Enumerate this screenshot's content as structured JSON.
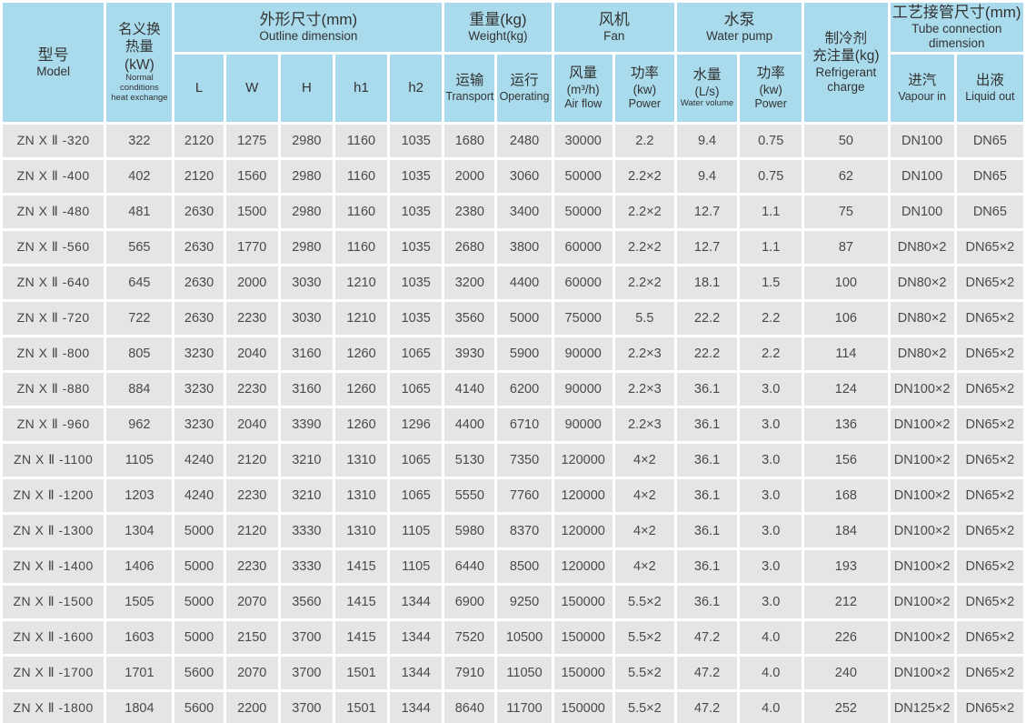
{
  "header": {
    "model": {
      "zh": "型号",
      "en": "Model"
    },
    "heat": {
      "zh_l1": "名义换",
      "zh_l2": "热量",
      "zh_l3": "(kW)",
      "en_l1": "Normal conditions",
      "en_l2": "heat exchange"
    },
    "outline": {
      "zh": "外形尺寸(mm)",
      "en": "Outline dimension",
      "cols": {
        "l": "L",
        "w": "W",
        "h": "H",
        "h1": "h1",
        "h2": "h2"
      }
    },
    "weight": {
      "zh": "重量(kg)",
      "en": "Weight(kg)",
      "transport": {
        "zh": "运输",
        "en": "Transport"
      },
      "operating": {
        "zh": "运行",
        "en": "Operating"
      }
    },
    "fan": {
      "zh": "风机",
      "en": "Fan",
      "airflow": {
        "zh": "风量",
        "unit": "(m³/h)",
        "en": "Air flow"
      },
      "power": {
        "zh": "功率",
        "unit": "(kw)",
        "en": "Power"
      }
    },
    "pump": {
      "zh": "水泵",
      "en": "Water pump",
      "volume": {
        "zh": "水量",
        "unit": "(L/s)",
        "en": "Water volume"
      },
      "power": {
        "zh": "功率",
        "unit": "(kw)",
        "en": "Power"
      }
    },
    "refrigerant": {
      "zh_l1": "制冷剂",
      "zh_l2": "充注量(kg)",
      "en_l1": "Refrigerant",
      "en_l2": "charge"
    },
    "tube": {
      "zh": "工艺接管尺寸(mm)",
      "en_l1": "Tube connection",
      "en_l2": "dimension",
      "vapour": {
        "zh": "进汽",
        "en": "Vapour in"
      },
      "liquid": {
        "zh": "出液",
        "en": "Liquid out"
      }
    }
  },
  "columns": [
    "model",
    "heat_kw",
    "L",
    "W",
    "H",
    "h1",
    "h2",
    "weight_transport",
    "weight_operating",
    "fan_airflow_m3h",
    "fan_power_kw",
    "pump_water_Ls",
    "pump_power_kw",
    "refrigerant_charge_kg",
    "vapour_in",
    "liquid_out"
  ],
  "rows": [
    [
      "ZN X Ⅱ -320",
      "322",
      "2120",
      "1275",
      "2980",
      "1160",
      "1035",
      "1680",
      "2480",
      "30000",
      "2.2",
      "9.4",
      "0.75",
      "50",
      "DN100",
      "DN65"
    ],
    [
      "ZN X Ⅱ -400",
      "402",
      "2120",
      "1560",
      "2980",
      "1160",
      "1035",
      "2000",
      "3060",
      "50000",
      "2.2×2",
      "9.4",
      "0.75",
      "62",
      "DN100",
      "DN65"
    ],
    [
      "ZN X Ⅱ -480",
      "481",
      "2630",
      "1500",
      "2980",
      "1160",
      "1035",
      "2380",
      "3400",
      "50000",
      "2.2×2",
      "12.7",
      "1.1",
      "75",
      "DN100",
      "DN65"
    ],
    [
      "ZN X Ⅱ -560",
      "565",
      "2630",
      "1770",
      "2980",
      "1160",
      "1035",
      "2680",
      "3800",
      "60000",
      "2.2×2",
      "12.7",
      "1.1",
      "87",
      "DN80×2",
      "DN65×2"
    ],
    [
      "ZN X Ⅱ -640",
      "645",
      "2630",
      "2000",
      "3030",
      "1210",
      "1035",
      "3200",
      "4400",
      "60000",
      "2.2×2",
      "18.1",
      "1.5",
      "100",
      "DN80×2",
      "DN65×2"
    ],
    [
      "ZN X Ⅱ -720",
      "722",
      "2630",
      "2230",
      "3030",
      "1210",
      "1035",
      "3560",
      "5000",
      "75000",
      "5.5",
      "22.2",
      "2.2",
      "106",
      "DN80×2",
      "DN65×2"
    ],
    [
      "ZN X Ⅱ -800",
      "805",
      "3230",
      "2040",
      "3160",
      "1260",
      "1065",
      "3930",
      "5900",
      "90000",
      "2.2×3",
      "22.2",
      "2.2",
      "114",
      "DN80×2",
      "DN65×2"
    ],
    [
      "ZN X Ⅱ -880",
      "884",
      "3230",
      "2230",
      "3160",
      "1260",
      "1065",
      "4140",
      "6200",
      "90000",
      "2.2×3",
      "36.1",
      "3.0",
      "124",
      "DN100×2",
      "DN65×2"
    ],
    [
      "ZN X Ⅱ -960",
      "962",
      "3230",
      "2040",
      "3390",
      "1260",
      "1296",
      "4400",
      "6710",
      "90000",
      "2.2×3",
      "36.1",
      "3.0",
      "136",
      "DN100×2",
      "DN65×2"
    ],
    [
      "ZN X Ⅱ -1100",
      "1105",
      "4240",
      "2120",
      "3210",
      "1310",
      "1065",
      "5130",
      "7350",
      "120000",
      "4×2",
      "36.1",
      "3.0",
      "156",
      "DN100×2",
      "DN65×2"
    ],
    [
      "ZN X Ⅱ -1200",
      "1203",
      "4240",
      "2230",
      "3210",
      "1310",
      "1065",
      "5550",
      "7760",
      "120000",
      "4×2",
      "36.1",
      "3.0",
      "168",
      "DN100×2",
      "DN65×2"
    ],
    [
      "ZN X Ⅱ -1300",
      "1304",
      "5000",
      "2120",
      "3330",
      "1310",
      "1105",
      "5980",
      "8370",
      "120000",
      "4×2",
      "36.1",
      "3.0",
      "184",
      "DN100×2",
      "DN65×2"
    ],
    [
      "ZN X Ⅱ -1400",
      "1406",
      "5000",
      "2230",
      "3330",
      "1415",
      "1105",
      "6440",
      "8500",
      "120000",
      "4×2",
      "36.1",
      "3.0",
      "193",
      "DN100×2",
      "DN65×2"
    ],
    [
      "ZN X Ⅱ -1500",
      "1505",
      "5000",
      "2070",
      "3560",
      "1415",
      "1344",
      "6900",
      "9250",
      "150000",
      "5.5×2",
      "36.1",
      "3.0",
      "212",
      "DN100×2",
      "DN65×2"
    ],
    [
      "ZN X Ⅱ -1600",
      "1603",
      "5000",
      "2150",
      "3700",
      "1415",
      "1344",
      "7520",
      "10500",
      "150000",
      "5.5×2",
      "47.2",
      "4.0",
      "226",
      "DN100×2",
      "DN65×2"
    ],
    [
      "ZN X Ⅱ -1700",
      "1701",
      "5600",
      "2070",
      "3700",
      "1501",
      "1344",
      "7910",
      "11050",
      "150000",
      "5.5×2",
      "47.2",
      "4.0",
      "240",
      "DN100×2",
      "DN65×2"
    ],
    [
      "ZN X Ⅱ -1800",
      "1804",
      "5600",
      "2200",
      "3700",
      "1501",
      "1344",
      "8640",
      "11700",
      "150000",
      "5.5×2",
      "47.2",
      "4.0",
      "252",
      "DN125×2",
      "DN65×2"
    ]
  ],
  "colors": {
    "header_bg": "#a9dbec",
    "cell_bg": "#e5e5e5",
    "grid": "#ffffff",
    "text": "#3c3c3c"
  }
}
